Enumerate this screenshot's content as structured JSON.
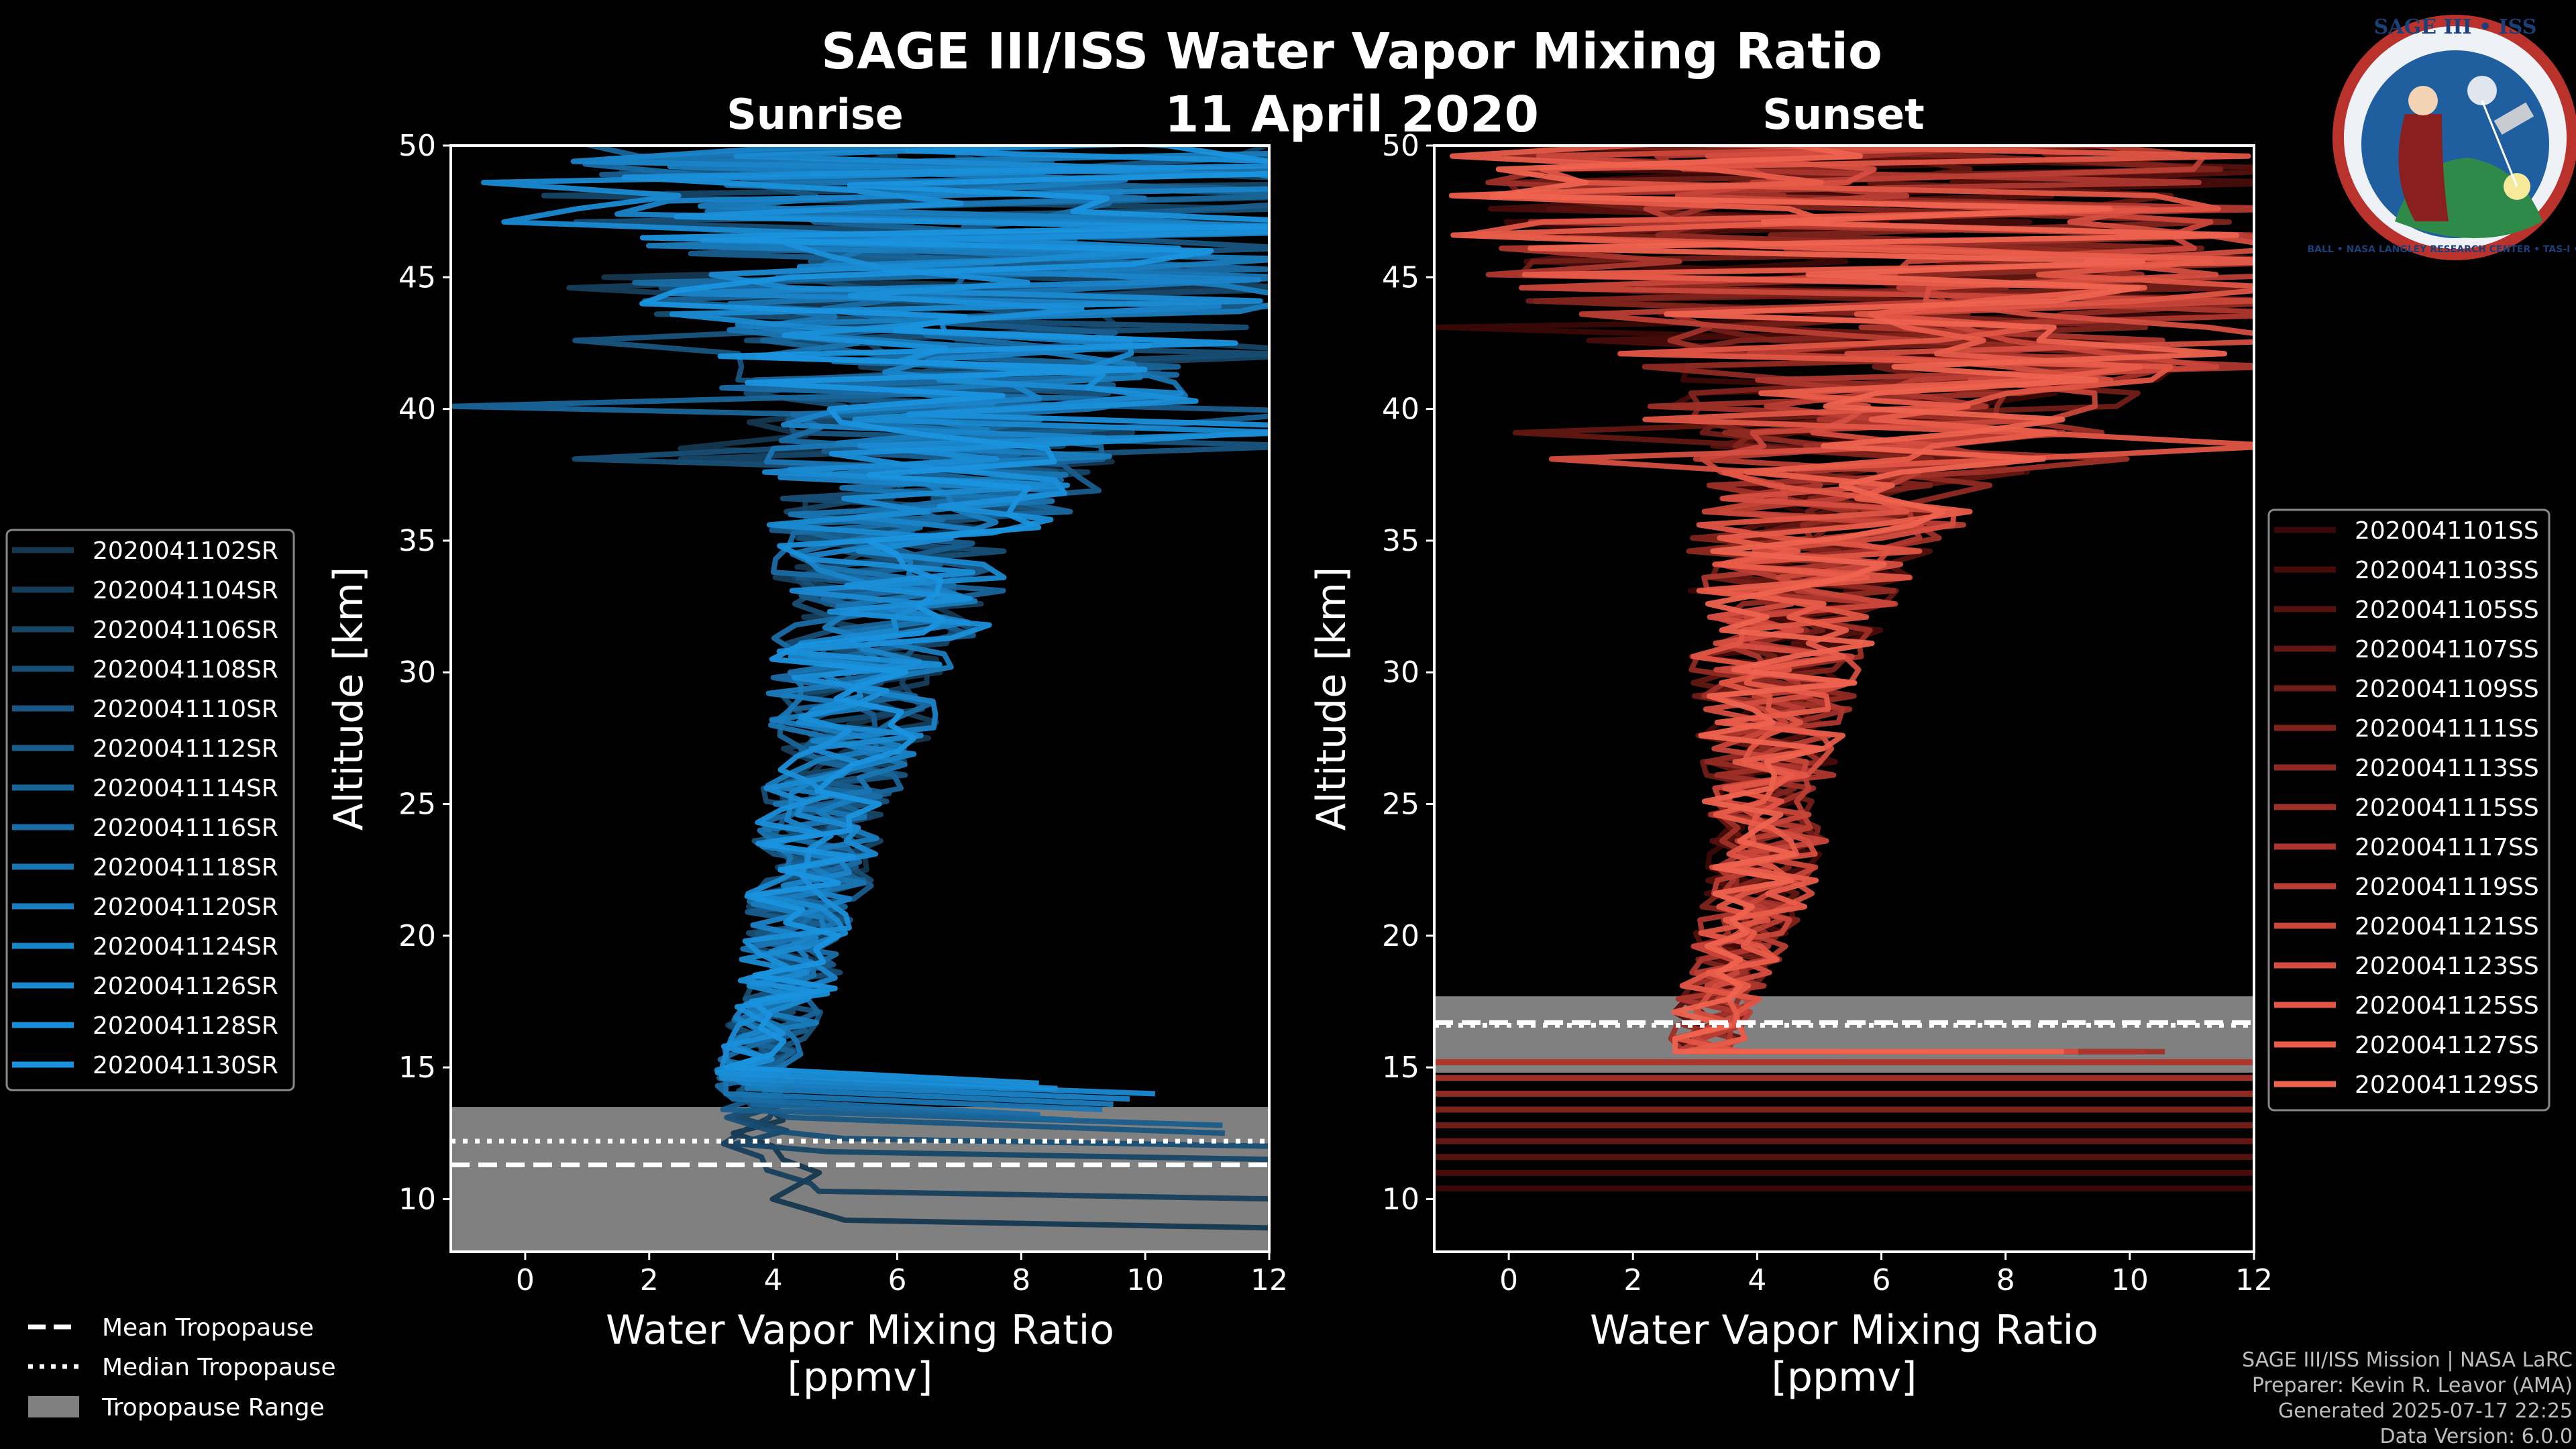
{
  "title": "SAGE III/ISS Water Vapor Mixing Ratio",
  "date": "11 April 2020",
  "logo": {
    "top_text": "SAGE III • ISS",
    "ring_text": "BALL • NASA LANGLEY RESEARCH CENTER • TAS-I • ESA"
  },
  "credits": {
    "line1": "SAGE III/ISS Mission | NASA LaRC",
    "line2": "Preparer: Kevin R. Leavor (AMA)",
    "line3": "Generated 2025-07-17 22:25",
    "line4": "Data Version: 6.0.0"
  },
  "tropo_legend": [
    {
      "label": "Mean Tropopause",
      "style": "dashed"
    },
    {
      "label": "Median Tropopause",
      "style": "dotted"
    },
    {
      "label": "Tropopause Range",
      "style": "patch"
    }
  ],
  "colors": {
    "sunrise": "#1a8fdc",
    "sunset": "#e85c4a",
    "range": "#808080"
  },
  "chart_data": [
    {
      "type": "line",
      "panel": "Sunrise",
      "title": "Sunrise",
      "xlabel": "Water Vapor Mixing Ratio\n[ppmv]",
      "ylabel": "Altitude [km]",
      "xlim": [
        -1.2,
        12
      ],
      "ylim": [
        8,
        50
      ],
      "xticks": [
        0,
        2,
        4,
        6,
        8,
        10,
        12
      ],
      "yticks": [
        10,
        15,
        20,
        25,
        30,
        35,
        40,
        45,
        50
      ],
      "tropopause": {
        "mean": 11.3,
        "median": 12.2,
        "range": [
          8,
          13.5
        ]
      },
      "profile": {
        "altitudes": [
          10,
          12,
          14,
          16,
          18,
          20,
          22,
          24,
          26,
          28,
          30,
          32,
          34,
          36,
          38,
          40,
          42,
          44,
          46,
          48,
          50
        ],
        "center": [
          4.3,
          3.8,
          3.6,
          3.9,
          4.2,
          4.4,
          4.6,
          4.8,
          5.0,
          5.3,
          5.5,
          5.8,
          6.1,
          6.4,
          6.8,
          7.1,
          7.5,
          7.2,
          7.0,
          7.3,
          7.4
        ],
        "spread": [
          0.8,
          0.6,
          0.6,
          0.7,
          0.8,
          0.9,
          1.0,
          1.1,
          1.2,
          1.4,
          1.6,
          1.8,
          2.1,
          2.5,
          3.0,
          3.6,
          4.2,
          5.5,
          6.5,
          7.0,
          7.0
        ]
      },
      "series": [
        {
          "name": "2020041102SR",
          "color": "#15374f",
          "low_km": 8.9
        },
        {
          "name": "2020041104SR",
          "color": "#163e5b",
          "low_km": 10.0
        },
        {
          "name": "2020041106SR",
          "color": "#174667",
          "low_km": 11.5
        },
        {
          "name": "2020041108SR",
          "color": "#174e74",
          "low_km": 12.0
        },
        {
          "name": "2020041110SR",
          "color": "#185580",
          "low_km": 12.5
        },
        {
          "name": "2020041112SR",
          "color": "#185d8d",
          "low_km": 12.8
        },
        {
          "name": "2020041114SR",
          "color": "#186599",
          "low_km": 13.0
        },
        {
          "name": "2020041116SR",
          "color": "#196da6",
          "low_km": 13.2
        },
        {
          "name": "2020041118SR",
          "color": "#1975b2",
          "low_km": 13.4
        },
        {
          "name": "2020041120SR",
          "color": "#197dbe",
          "low_km": 13.6
        },
        {
          "name": "2020041124SR",
          "color": "#1a84c9",
          "low_km": 13.8
        },
        {
          "name": "2020041126SR",
          "color": "#1a8ad2",
          "low_km": 14.0
        },
        {
          "name": "2020041128SR",
          "color": "#1a8fd9",
          "low_km": 14.2
        },
        {
          "name": "2020041130SR",
          "color": "#1a93df",
          "low_km": 14.4
        }
      ]
    },
    {
      "type": "line",
      "panel": "Sunset",
      "title": "Sunset",
      "xlabel": "Water Vapor Mixing Ratio\n[ppmv]",
      "ylabel": "Altitude [km]",
      "xlim": [
        -1.2,
        12
      ],
      "ylim": [
        8,
        50
      ],
      "xticks": [
        0,
        2,
        4,
        6,
        8,
        10,
        12
      ],
      "yticks": [
        10,
        15,
        20,
        25,
        30,
        35,
        40,
        45,
        50
      ],
      "tropopause": {
        "mean": 16.7,
        "median": 16.6,
        "range": [
          14.8,
          17.7
        ]
      },
      "profile": {
        "altitudes": [
          16,
          18,
          20,
          22,
          24,
          26,
          28,
          30,
          32,
          34,
          36,
          38,
          40,
          42,
          44,
          46,
          48,
          50
        ],
        "center": [
          3.2,
          3.4,
          3.8,
          4.1,
          4.2,
          4.2,
          4.2,
          4.3,
          4.5,
          4.8,
          5.2,
          5.6,
          6.0,
          6.5,
          6.5,
          6.3,
          6.2,
          6.2
        ],
        "spread": [
          0.6,
          0.7,
          0.8,
          0.9,
          1.0,
          1.1,
          1.2,
          1.4,
          1.6,
          1.9,
          2.3,
          3.0,
          3.8,
          5.0,
          6.5,
          7.0,
          7.2,
          7.2
        ]
      },
      "low_flat_altitudes_km": [
        10.4,
        11.0,
        11.6,
        12.2,
        12.8,
        13.4,
        14.0,
        14.6,
        15.2
      ],
      "series": [
        {
          "name": "2020041101SS",
          "color": "#3a0806"
        },
        {
          "name": "2020041103SS",
          "color": "#470c09"
        },
        {
          "name": "2020041105SS",
          "color": "#55110d"
        },
        {
          "name": "2020041107SS",
          "color": "#631712"
        },
        {
          "name": "2020041109SS",
          "color": "#711d17"
        },
        {
          "name": "2020041111SS",
          "color": "#80231c"
        },
        {
          "name": "2020041113SS",
          "color": "#8f2a22"
        },
        {
          "name": "2020041115SS",
          "color": "#9e3028"
        },
        {
          "name": "2020041117SS",
          "color": "#ad372e"
        },
        {
          "name": "2020041119SS",
          "color": "#bb3e34"
        },
        {
          "name": "2020041121SS",
          "color": "#c9463a"
        },
        {
          "name": "2020041123SS",
          "color": "#d54e40"
        },
        {
          "name": "2020041125SS",
          "color": "#e05545"
        },
        {
          "name": "2020041127SS",
          "color": "#e85c4a"
        },
        {
          "name": "2020041129SS",
          "color": "#ee634f"
        }
      ]
    }
  ]
}
